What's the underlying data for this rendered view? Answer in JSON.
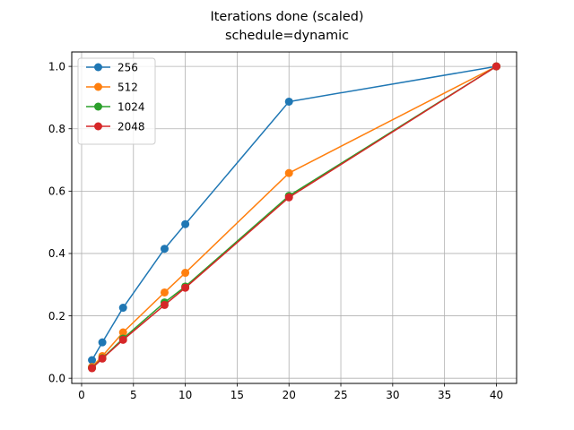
{
  "chart_data": {
    "type": "line",
    "title": "Iterations done (scaled)",
    "subtitle": "schedule=dynamic",
    "xlabel": "",
    "ylabel": "",
    "x": [
      1,
      2,
      4,
      8,
      10,
      20,
      40
    ],
    "xlim": [
      -0.95,
      41.95
    ],
    "ylim": [
      -0.0167,
      1.0463
    ],
    "xticks": [
      0,
      5,
      10,
      15,
      20,
      25,
      30,
      35,
      40
    ],
    "yticks": [
      0.0,
      0.2,
      0.4,
      0.6,
      0.8,
      1.0
    ],
    "grid": true,
    "legend_position": "upper-left",
    "series": [
      {
        "name": "256",
        "color": "#1f77b4",
        "values": [
          0.058,
          0.115,
          0.226,
          0.415,
          0.494,
          0.887,
          1.0
        ]
      },
      {
        "name": "512",
        "color": "#ff7f0e",
        "values": [
          0.036,
          0.071,
          0.147,
          0.275,
          0.338,
          0.658,
          1.0
        ]
      },
      {
        "name": "1024",
        "color": "#2ca02c",
        "values": [
          0.033,
          0.064,
          0.127,
          0.243,
          0.294,
          0.585,
          1.0
        ]
      },
      {
        "name": "2048",
        "color": "#d62728",
        "values": [
          0.032,
          0.063,
          0.123,
          0.235,
          0.29,
          0.58,
          1.0
        ]
      }
    ]
  }
}
